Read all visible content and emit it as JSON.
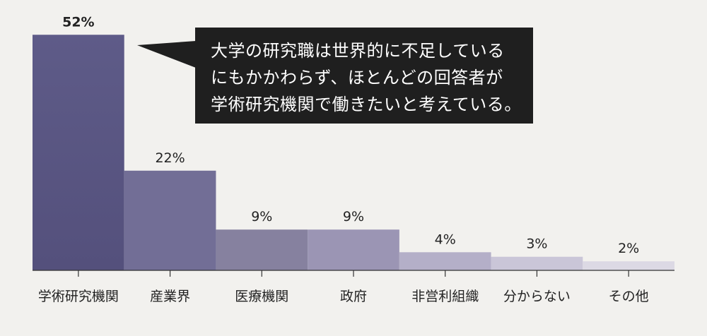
{
  "chart_data": {
    "type": "bar",
    "categories": [
      "学術研究機関",
      "産業界",
      "医療機関",
      "政府",
      "非営利組織",
      "分からない",
      "その他"
    ],
    "values": [
      52,
      22,
      9,
      9,
      4,
      3,
      2
    ],
    "value_labels": [
      "52%",
      "22%",
      "9%",
      "9%",
      "4%",
      "3%",
      "2%"
    ],
    "unit": "%",
    "ylim": [
      0,
      55
    ],
    "grid": false,
    "colors": [
      "#5a5785",
      "#726e96",
      "#86819f",
      "#9b95b4",
      "#b4afc8",
      "#cac6d8",
      "#dcd9e4"
    ],
    "annotation": {
      "lines": [
        "大学の研究職は世界的に不足している",
        "にもかかわらず、ほとんどの回答者が",
        "学術研究機関で働きたいと考えている。"
      ]
    }
  },
  "theme": {
    "background": "#f2f1ee",
    "callout_background": "#1f1f1f",
    "callout_text": "#ffffff",
    "axis_color": "#333333",
    "text_color": "#222222"
  }
}
